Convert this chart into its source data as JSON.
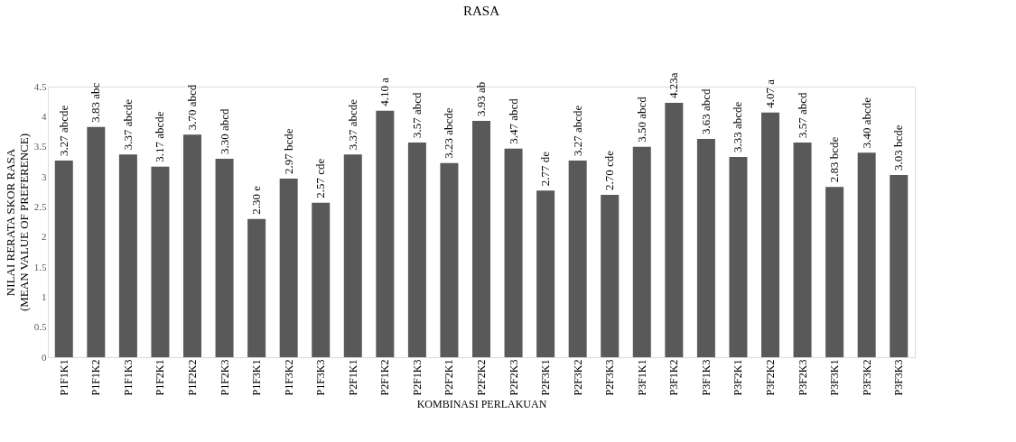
{
  "chart_data": {
    "type": "bar",
    "title": "RASA",
    "xlabel": "KOMBINASI PERLAKUAN",
    "ylabel": "NILAI RERATA SKOR RASA\n(MEAN VALUE OF PREFERENCE)",
    "categories": [
      "P1F1K1",
      "P1F1K2",
      "P1F1K3",
      "P1F2K1",
      "P1F2K2",
      "P1F2K3",
      "P1F3K1",
      "P1F3K2",
      "P1F3K3",
      "P2F1K1",
      "P2F1K2",
      "P2F1K3",
      "P2F2K1",
      "P2F2K2",
      "P2F2K3",
      "P2F3K1",
      "P2F3K2",
      "P2F3K3",
      "P3F1K1",
      "P3F1K2",
      "P3F1K3",
      "P3F2K1",
      "P3F2K2",
      "P3F2K3",
      "P3F3K1",
      "P3F3K2",
      "P3F3K3"
    ],
    "values": [
      3.27,
      3.83,
      3.37,
      3.17,
      3.7,
      3.3,
      2.3,
      2.97,
      2.57,
      3.37,
      4.1,
      3.57,
      3.23,
      3.93,
      3.47,
      2.77,
      3.27,
      2.7,
      3.5,
      4.23,
      3.63,
      3.33,
      4.07,
      3.57,
      2.83,
      3.4,
      3.03
    ],
    "value_labels": [
      "3.27 abcde",
      "3.83 abc",
      "3.37 abcde",
      "3.17 abcde",
      "3.70 abcd",
      "3.30 abcd",
      "2.30 e",
      "2.97 bcde",
      "2.57 cde",
      "3.37 abcde",
      "4.10 a",
      "3.57 abcd",
      "3.23 abcde",
      "3.93 ab",
      "3.47 abcd",
      "2.77 de",
      "3.27 abcde",
      "2.70 cde",
      "3.50 abcd",
      "4.23a",
      "3.63 abcd",
      "3.33 abcde",
      "4.07 a",
      "3.57 abcd",
      "2.83 bcde",
      "3.40 abcde",
      "3.03 bcde"
    ],
    "color": "#595959",
    "ylim": [
      0,
      4.5
    ],
    "yticks": [
      0,
      0.5,
      1,
      1.5,
      2,
      2.5,
      3,
      3.5,
      4,
      4.5
    ],
    "grid": false
  }
}
